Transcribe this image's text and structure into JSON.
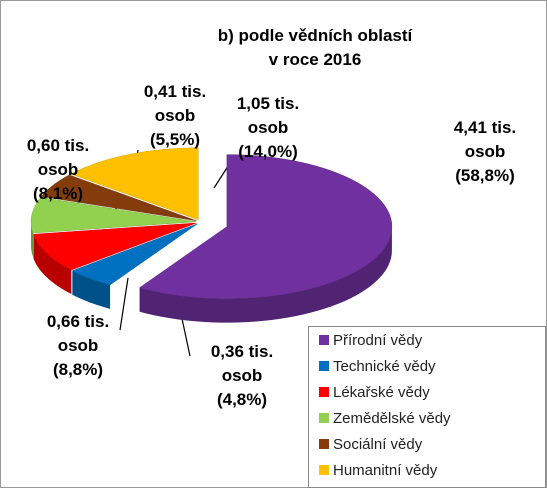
{
  "chart_data": {
    "type": "pie3d",
    "title": [
      "b) podle vědních oblastí",
      "v roce 2016"
    ],
    "categories": [
      "Přírodní vědy",
      "Technické vědy",
      "Lékařské vědy",
      "Zemědělské vědy",
      "Sociální vědy",
      "Humanitní vědy"
    ],
    "values": [
      4.41,
      0.36,
      0.66,
      0.6,
      0.41,
      1.05
    ],
    "value_labels": [
      "4,41 tis. osob",
      "0,36 tis. osob",
      "0,66 tis. osob",
      "0,60 tis. osob",
      "0,41 tis. osob",
      "1,05 tis. osob"
    ],
    "percents": [
      58.8,
      4.8,
      8.8,
      8.1,
      5.5,
      14.0
    ],
    "percent_labels": [
      "(58,8%)",
      "(4,8%)",
      "(8,8%)",
      "(8,1%)",
      "(5,5%)",
      "(14,0%)"
    ],
    "colors": [
      "#7030a0",
      "#0070c0",
      "#ff0000",
      "#92d050",
      "#843c0c",
      "#ffc000"
    ],
    "legend": "bottom-right"
  }
}
